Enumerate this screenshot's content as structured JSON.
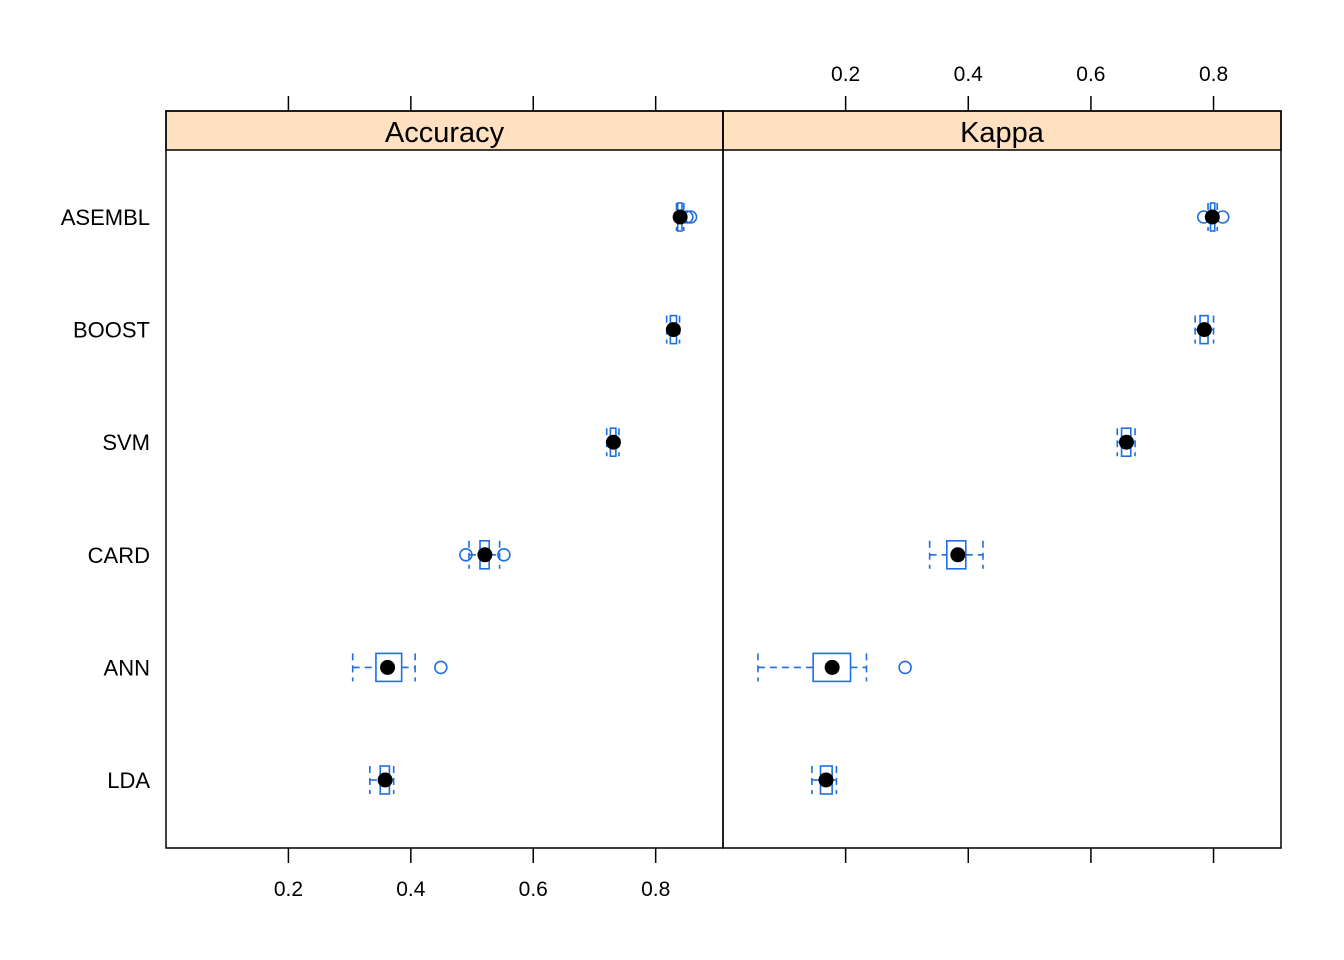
{
  "chart_data": {
    "type": "boxplot",
    "layout": "two side-by-side panels sharing the model axis",
    "models": [
      "ASEMBL",
      "BOOST",
      "SVM",
      "CARD",
      "ANN",
      "LDA"
    ],
    "x_range": [
      0.0,
      0.91
    ],
    "ticks": [
      0.2,
      0.4,
      0.6,
      0.8
    ],
    "tick_labels": [
      "0.2",
      "0.4",
      "0.6",
      "0.8"
    ],
    "colors": {
      "strip": "#ffe0c0",
      "box": "#1f6fe0",
      "median_dot": "#000000",
      "frame": "#000000"
    },
    "panels": [
      {
        "title": "Accuracy",
        "tick_side": "bottom",
        "boxes": [
          {
            "model": "ASEMBL",
            "lower_whisker": 0.834,
            "q1": 0.836,
            "median": 0.84,
            "q3": 0.843,
            "upper_whisker": 0.846,
            "outliers": [
              0.851,
              0.857
            ]
          },
          {
            "model": "BOOST",
            "lower_whisker": 0.818,
            "q1": 0.824,
            "median": 0.829,
            "q3": 0.834,
            "upper_whisker": 0.839,
            "outliers": []
          },
          {
            "model": "SVM",
            "lower_whisker": 0.72,
            "q1": 0.726,
            "median": 0.731,
            "q3": 0.735,
            "upper_whisker": 0.74,
            "outliers": []
          },
          {
            "model": "CARD",
            "lower_whisker": 0.495,
            "q1": 0.513,
            "median": 0.521,
            "q3": 0.528,
            "upper_whisker": 0.545,
            "outliers": [
              0.49,
              0.552
            ]
          },
          {
            "model": "ANN",
            "lower_whisker": 0.305,
            "q1": 0.343,
            "median": 0.362,
            "q3": 0.385,
            "upper_whisker": 0.407,
            "outliers": [
              0.449
            ]
          },
          {
            "model": "LDA",
            "lower_whisker": 0.333,
            "q1": 0.35,
            "median": 0.358,
            "q3": 0.365,
            "upper_whisker": 0.372,
            "outliers": []
          }
        ]
      },
      {
        "title": "Kappa",
        "tick_side": "top",
        "boxes": [
          {
            "model": "ASEMBL",
            "lower_whisker": 0.791,
            "q1": 0.795,
            "median": 0.798,
            "q3": 0.802,
            "upper_whisker": 0.806,
            "outliers": [
              0.784,
              0.815
            ]
          },
          {
            "model": "BOOST",
            "lower_whisker": 0.77,
            "q1": 0.778,
            "median": 0.785,
            "q3": 0.791,
            "upper_whisker": 0.8,
            "outliers": []
          },
          {
            "model": "SVM",
            "lower_whisker": 0.643,
            "q1": 0.65,
            "median": 0.658,
            "q3": 0.665,
            "upper_whisker": 0.672,
            "outliers": []
          },
          {
            "model": "CARD",
            "lower_whisker": 0.337,
            "q1": 0.365,
            "median": 0.383,
            "q3": 0.396,
            "upper_whisker": 0.424,
            "outliers": []
          },
          {
            "model": "ANN",
            "lower_whisker": 0.057,
            "q1": 0.147,
            "median": 0.178,
            "q3": 0.208,
            "upper_whisker": 0.234,
            "outliers": [
              0.297
            ]
          },
          {
            "model": "LDA",
            "lower_whisker": 0.145,
            "q1": 0.159,
            "median": 0.168,
            "q3": 0.178,
            "upper_whisker": 0.185,
            "outliers": []
          }
        ]
      }
    ]
  }
}
